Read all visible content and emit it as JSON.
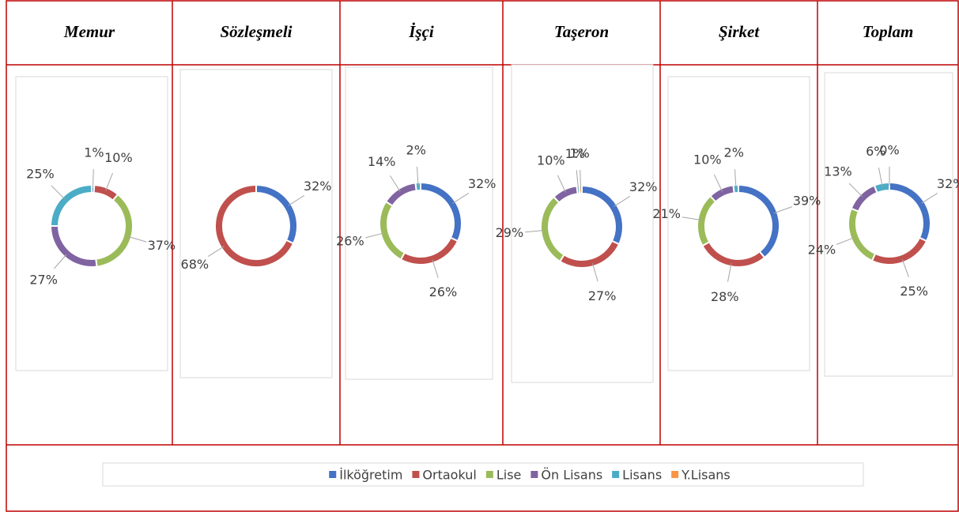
{
  "chart_data": [
    {
      "type": "donut",
      "title": "Memur",
      "values": [
        1,
        10,
        37,
        27,
        25
      ],
      "value_labels": [
        "1%",
        "10%",
        "37%",
        "27%",
        "25%"
      ]
    },
    {
      "type": "donut",
      "title": "Sözleşmeli",
      "values": [
        32,
        68
      ],
      "value_labels": [
        "32%",
        "68%"
      ]
    },
    {
      "type": "donut",
      "title": "İşçi",
      "values": [
        32,
        26,
        26,
        14,
        2
      ],
      "value_labels": [
        "32%",
        "26%",
        "26%",
        "14%",
        "2%"
      ]
    },
    {
      "type": "donut",
      "title": "Taşeron",
      "values": [
        32,
        27,
        29,
        10,
        1,
        1
      ],
      "value_labels": [
        "32%",
        "27%",
        "29%",
        "10%",
        "1%",
        "1%"
      ]
    },
    {
      "type": "donut",
      "title": "Şirket",
      "values": [
        39,
        28,
        21,
        10,
        2
      ],
      "value_labels": [
        "39%",
        "28%",
        "21%",
        "10%",
        "2%"
      ]
    },
    {
      "type": "donut",
      "title": "Toplam",
      "values": [
        32,
        25,
        24,
        13,
        6,
        0
      ],
      "value_labels": [
        "32%",
        "25%",
        "24%",
        "13%",
        "6%",
        "0%"
      ]
    }
  ],
  "legend": {
    "categories": [
      "İlköğretim",
      "Ortaokul",
      "Lise",
      "Ön Lisans",
      "Lisans",
      "Y.Lisans"
    ],
    "colors": [
      "#4472c4",
      "#c0504d",
      "#9bbb59",
      "#8064a2",
      "#4bacc6",
      "#f79646"
    ]
  }
}
